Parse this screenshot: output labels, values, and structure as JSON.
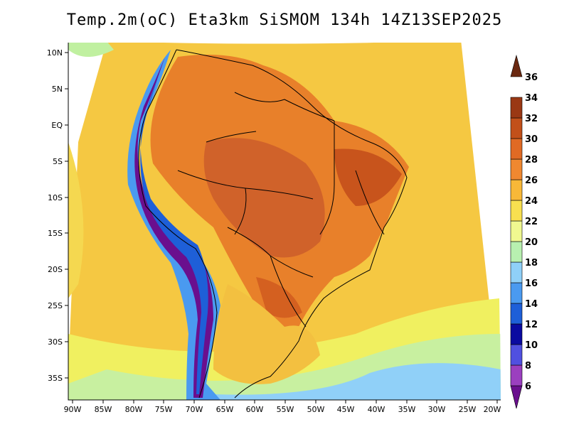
{
  "title": "Temp.2m(oC) Eta3km SiSMOM 134h 14Z13SEP2025",
  "map": {
    "lat_labels": [
      "10N",
      "5N",
      "EQ",
      "5S",
      "10S",
      "15S",
      "20S",
      "25S",
      "30S",
      "35S"
    ],
    "lon_labels": [
      "90W",
      "85W",
      "80W",
      "75W",
      "70W",
      "65W",
      "60W",
      "55W",
      "50W",
      "45W",
      "40W",
      "35W",
      "30W",
      "25W",
      "20W"
    ]
  },
  "colorbar": {
    "labels": [
      "6",
      "8",
      "10",
      "12",
      "14",
      "16",
      "18",
      "20",
      "22",
      "24",
      "26",
      "28",
      "30",
      "32",
      "34",
      "36"
    ],
    "colors": [
      "#6a0f8e",
      "#9b3fbf",
      "#5050e0",
      "#0a0aa0",
      "#1e5fd8",
      "#4a9af0",
      "#8fd0f8",
      "#b8f0b0",
      "#f0f890",
      "#f8e050",
      "#f8b838",
      "#f08830",
      "#e06a24",
      "#c2501a",
      "#9a3814",
      "#6a2810"
    ]
  }
}
